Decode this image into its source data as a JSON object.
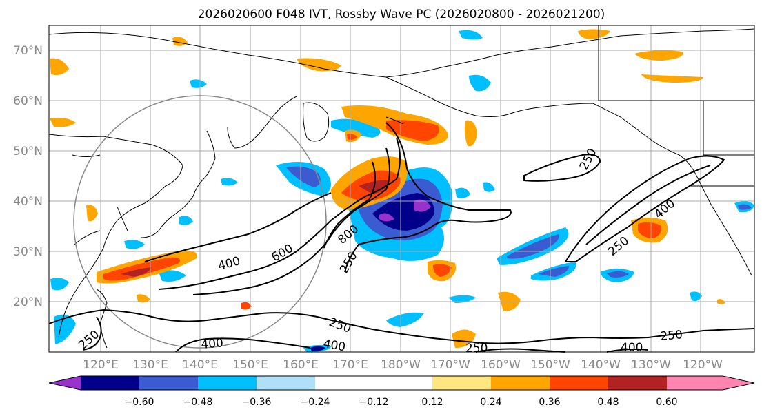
{
  "title": "2026020600 F048 IVT, Rossby Wave PC (2026020800 - 2026021200)",
  "map": {
    "lat_labels": [
      "70°N",
      "60°N",
      "50°N",
      "40°N",
      "30°N",
      "20°N"
    ],
    "lon_labels": [
      "120°E",
      "130°E",
      "140°E",
      "150°E",
      "160°E",
      "170°E",
      "180°W",
      "170°W",
      "160°W",
      "150°W",
      "140°W",
      "130°W",
      "120°W"
    ],
    "contour_labels": [
      "250",
      "400",
      "250",
      "400",
      "600",
      "800",
      "250",
      "250",
      "400",
      "250",
      "400",
      "400",
      "250",
      "250"
    ]
  },
  "colorbar": {
    "ticks": [
      "−0.60",
      "−0.48",
      "−0.36",
      "−0.24",
      "−0.12",
      "0.12",
      "0.24",
      "0.36",
      "0.48",
      "0.60"
    ],
    "colors": [
      "#9932cc",
      "#00008b",
      "#3a5bd1",
      "#00bfff",
      "#b0e0f8",
      "#ffffff",
      "#ffe680",
      "#ffa500",
      "#ff4500",
      "#b22222",
      "#ff85b0"
    ]
  }
}
